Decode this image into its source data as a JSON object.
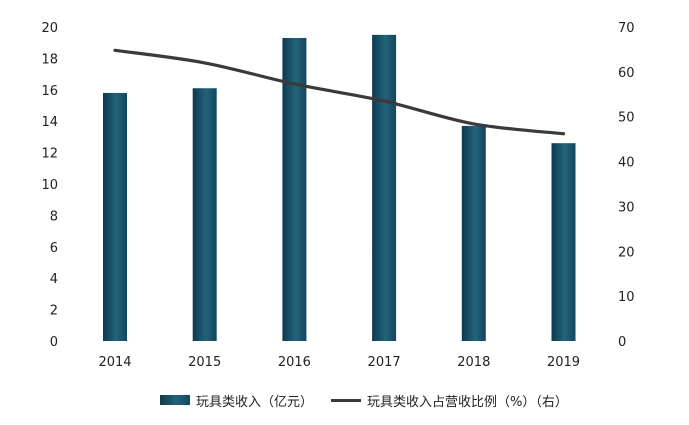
{
  "chart_data": {
    "type": "bar+line",
    "categories": [
      "2014",
      "2015",
      "2016",
      "2017",
      "2018",
      "2019"
    ],
    "series": [
      {
        "name": "玩具类收入（亿元）",
        "type": "bar",
        "axis": "left",
        "values": [
          15.8,
          16.1,
          19.3,
          19.5,
          13.7,
          12.6
        ],
        "color": "#1b5269"
      },
      {
        "name": "玩具类收入占营收比例（%）（右）",
        "type": "line",
        "axis": "right",
        "values": [
          64.8,
          62.0,
          57.3,
          53.5,
          48.4,
          46.2
        ],
        "color": "#3a3a3a"
      }
    ],
    "y_left": {
      "min": 0,
      "max": 20,
      "ticks": [
        "0",
        "2",
        "4",
        "6",
        "8",
        "10",
        "12",
        "14",
        "16",
        "18",
        "20"
      ]
    },
    "y_right": {
      "min": 0,
      "max": 70,
      "ticks": [
        "0",
        "10",
        "20",
        "30",
        "40",
        "50",
        "60",
        "70"
      ]
    },
    "grid": false,
    "legend_position": "bottom"
  }
}
